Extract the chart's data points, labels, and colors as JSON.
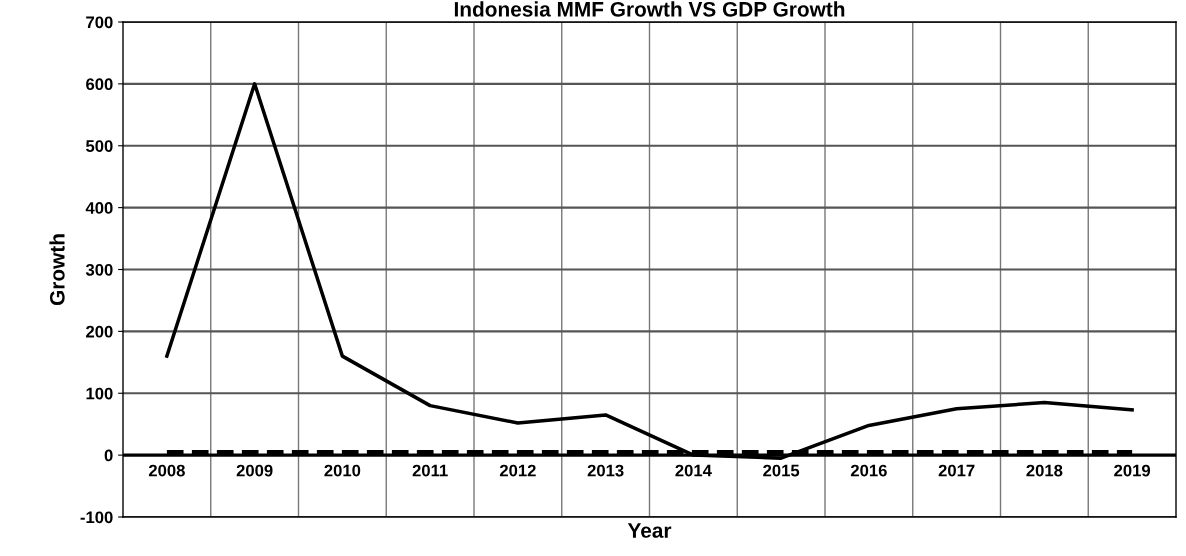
{
  "chart_data": {
    "type": "line",
    "title": "Indonesia MMF Growth VS GDP Growth",
    "xlabel": "Year",
    "ylabel": "Growth",
    "categories": [
      "2008",
      "2009",
      "2010",
      "2011",
      "2012",
      "2013",
      "2014",
      "2015",
      "2016",
      "2017",
      "2018",
      "2019"
    ],
    "series": [
      {
        "color": "#000000",
        "line_style": "solid",
        "values": [
          160,
          600,
          160,
          80,
          52,
          65,
          0,
          -5,
          48,
          75,
          85,
          73
        ]
      },
      {
        "color": "#000000",
        "line_style": "dashed",
        "values": [
          5,
          5,
          5,
          5,
          5,
          5,
          5,
          5,
          5,
          5,
          5,
          5
        ]
      }
    ],
    "ylim": [
      -100,
      700
    ],
    "yticks": [
      -100,
      0,
      100,
      200,
      300,
      400,
      500,
      600,
      700
    ],
    "grid": true,
    "legend": false,
    "marker": "none"
  }
}
